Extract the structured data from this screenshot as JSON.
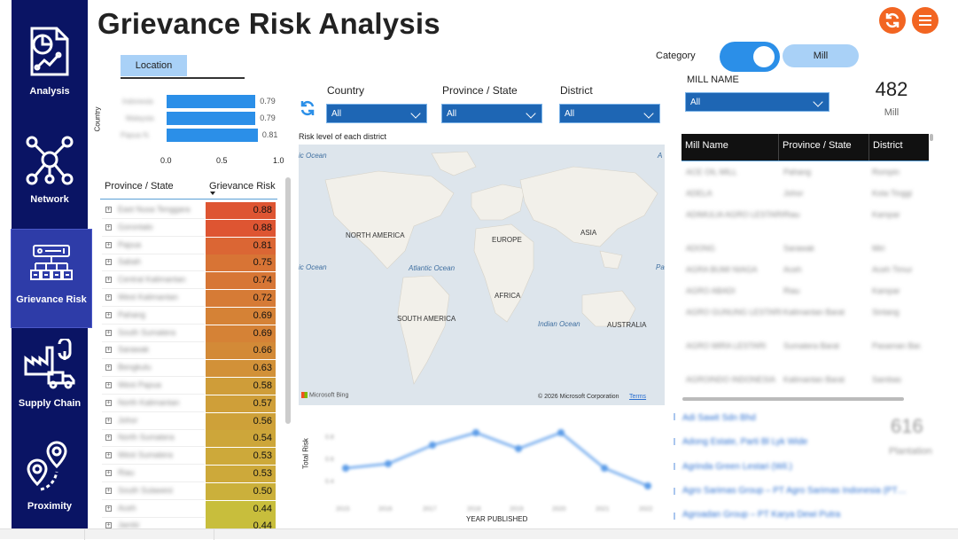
{
  "title": "Grievance Risk Analysis",
  "nav": [
    {
      "label": "Analysis",
      "icon": "analysis-icon"
    },
    {
      "label": "Network",
      "icon": "network-icon"
    },
    {
      "label": "Grievance Risk",
      "icon": "grievance-risk-icon",
      "active": true
    },
    {
      "label": "Supply Chain",
      "icon": "supply-chain-icon"
    },
    {
      "label": "Proximity",
      "icon": "proximity-icon"
    }
  ],
  "header_buttons": {
    "refresh_icon": "refresh-icon",
    "menu_icon": "hamburger-menu-icon",
    "color": "#f26522"
  },
  "location_tab": "Location",
  "country_chart": {
    "axis_title": "Country",
    "bars": [
      0.79,
      0.79,
      0.81
    ],
    "bar_labels": [
      "0.79",
      "0.79",
      "0.81"
    ],
    "ticks": [
      "0.0",
      "0.5",
      "1.0"
    ],
    "xlim": [
      0,
      1
    ],
    "bar_color": "#2b8fe8"
  },
  "province_table": {
    "col1": "Province / State",
    "col2": "Grievance Risk",
    "risks": [
      "0.88",
      "0.88",
      "0.81",
      "0.75",
      "0.74",
      "0.72",
      "0.69",
      "0.69",
      "0.66",
      "0.63",
      "0.58",
      "0.57",
      "0.56",
      "0.54",
      "0.53",
      "0.53",
      "0.50",
      "0.44",
      "0.44"
    ]
  },
  "filters": {
    "country": {
      "label": "Country",
      "value": "All"
    },
    "province": {
      "label": "Province / State",
      "value": "All"
    },
    "district": {
      "label": "District",
      "value": "All"
    },
    "mill_name": {
      "label": "MILL NAME",
      "value": "All"
    }
  },
  "map": {
    "title": "Risk level of each district",
    "continents": [
      "NORTH AMERICA",
      "EUROPE",
      "ASIA",
      "AFRICA",
      "SOUTH AMERICA",
      "AUSTRALIA"
    ],
    "oceans": [
      "ic Ocean",
      "ic Ocean",
      "Atlantic Ocean",
      "Indian Ocean",
      "A",
      "Pa"
    ],
    "brand": "Microsoft Bing",
    "copyright": "© 2026 Microsoft Corporation",
    "terms": "Terms"
  },
  "line_chart": {
    "ylabel": "Total Risk",
    "xlabel": "YEAR PUBLISHED"
  },
  "category": {
    "label": "Category",
    "toggle_option": "Mill"
  },
  "mill_card": {
    "value": "482",
    "label": "Mill"
  },
  "mill_table": {
    "headers": [
      "Mill Name",
      "Province / State",
      "District"
    ]
  },
  "plantation_card": {
    "value": "616",
    "label": "Plantation"
  }
}
